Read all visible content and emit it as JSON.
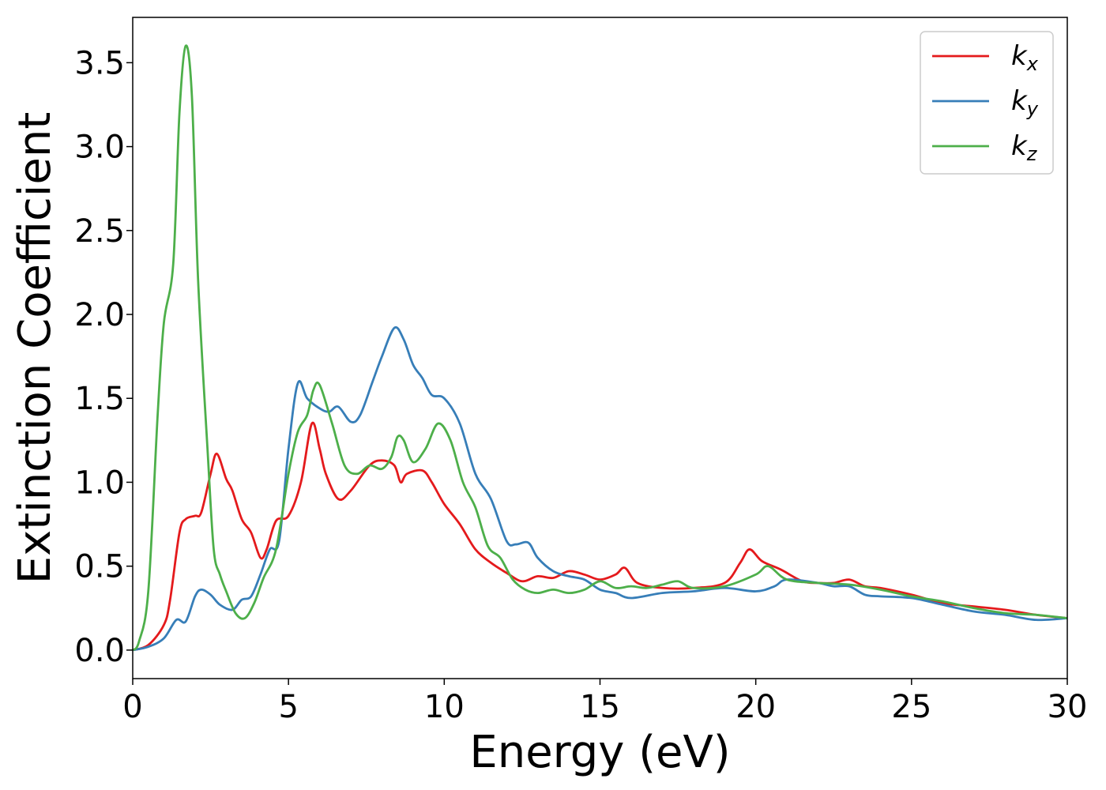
{
  "chart_data": {
    "type": "line",
    "title": "",
    "xlabel": "Energy (eV)",
    "ylabel": "Extinction Coefficient",
    "xlim": [
      0,
      30
    ],
    "ylim": [
      -0.17,
      3.77
    ],
    "xticks": [
      0,
      5,
      10,
      15,
      20,
      25,
      30
    ],
    "yticks": [
      "0.0",
      "0.5",
      "1.0",
      "1.5",
      "2.0",
      "2.5",
      "3.0",
      "3.5"
    ],
    "grid": false,
    "legend_position": "top-right",
    "series": [
      {
        "name": "k",
        "subscript": "x",
        "color": "#e41a1c",
        "x": [
          0,
          0.5,
          1.0,
          1.2,
          1.5,
          1.7,
          2.0,
          2.2,
          2.5,
          2.7,
          3.0,
          3.2,
          3.5,
          3.8,
          4.1,
          4.3,
          4.6,
          5.0,
          5.4,
          5.75,
          6.0,
          6.2,
          6.6,
          7.0,
          7.6,
          8.0,
          8.4,
          8.6,
          8.8,
          9.3,
          9.6,
          10.0,
          10.5,
          11.0,
          11.5,
          12.0,
          12.5,
          13.0,
          13.5,
          14.0,
          14.5,
          15.0,
          15.5,
          15.8,
          16.2,
          17.0,
          18.0,
          19.0,
          19.5,
          19.8,
          20.2,
          20.8,
          21.5,
          22.0,
          22.5,
          23.0,
          23.5,
          24.0,
          25.0,
          26.0,
          27.0,
          28.0,
          29.0,
          30.0
        ],
        "values": [
          0.0,
          0.03,
          0.15,
          0.3,
          0.7,
          0.78,
          0.8,
          0.82,
          1.05,
          1.17,
          1.02,
          0.95,
          0.78,
          0.7,
          0.55,
          0.6,
          0.77,
          0.8,
          1.0,
          1.35,
          1.2,
          1.05,
          0.9,
          0.95,
          1.1,
          1.13,
          1.1,
          1.0,
          1.05,
          1.07,
          1.0,
          0.87,
          0.75,
          0.6,
          0.52,
          0.46,
          0.41,
          0.44,
          0.43,
          0.47,
          0.45,
          0.42,
          0.45,
          0.49,
          0.4,
          0.37,
          0.37,
          0.4,
          0.52,
          0.6,
          0.53,
          0.48,
          0.41,
          0.4,
          0.4,
          0.42,
          0.38,
          0.37,
          0.33,
          0.28,
          0.26,
          0.24,
          0.21,
          0.19
        ]
      },
      {
        "name": "k",
        "subscript": "y",
        "color": "#377eb8",
        "x": [
          0,
          0.5,
          1.0,
          1.4,
          1.7,
          2.0,
          2.2,
          2.5,
          2.8,
          3.2,
          3.5,
          3.8,
          4.1,
          4.4,
          4.7,
          5.0,
          5.3,
          5.6,
          6.0,
          6.3,
          6.6,
          7.0,
          7.3,
          7.7,
          8.0,
          8.4,
          8.7,
          9.0,
          9.3,
          9.6,
          10.0,
          10.5,
          11.0,
          11.5,
          12.0,
          12.3,
          12.7,
          13.0,
          13.5,
          14.0,
          14.5,
          15.0,
          15.5,
          16.0,
          17.0,
          18.0,
          19.0,
          20.0,
          20.6,
          21.0,
          22.0,
          22.5,
          23.0,
          23.5,
          24.0,
          25.0,
          26.0,
          27.0,
          28.0,
          29.0,
          30.0
        ],
        "values": [
          0.0,
          0.02,
          0.07,
          0.18,
          0.17,
          0.32,
          0.36,
          0.33,
          0.27,
          0.24,
          0.3,
          0.32,
          0.45,
          0.6,
          0.65,
          1.2,
          1.59,
          1.5,
          1.44,
          1.42,
          1.45,
          1.36,
          1.4,
          1.6,
          1.75,
          1.92,
          1.85,
          1.7,
          1.62,
          1.52,
          1.5,
          1.35,
          1.05,
          0.9,
          0.65,
          0.63,
          0.64,
          0.55,
          0.47,
          0.44,
          0.42,
          0.36,
          0.34,
          0.31,
          0.34,
          0.35,
          0.37,
          0.35,
          0.38,
          0.42,
          0.4,
          0.38,
          0.38,
          0.33,
          0.32,
          0.31,
          0.27,
          0.23,
          0.21,
          0.18,
          0.19
        ]
      },
      {
        "name": "k",
        "subscript": "z",
        "color": "#4daf4a",
        "x": [
          0,
          0.2,
          0.5,
          0.8,
          1.0,
          1.3,
          1.5,
          1.7,
          1.9,
          2.1,
          2.4,
          2.6,
          2.8,
          3.0,
          3.3,
          3.6,
          3.9,
          4.2,
          4.6,
          5.0,
          5.3,
          5.6,
          5.8,
          6.0,
          6.4,
          6.8,
          7.2,
          7.6,
          8.0,
          8.3,
          8.5,
          8.7,
          9.0,
          9.4,
          9.8,
          10.2,
          10.6,
          11.0,
          11.4,
          11.8,
          12.2,
          12.6,
          13.0,
          13.5,
          14.0,
          14.5,
          15.0,
          15.5,
          16.0,
          16.5,
          17.0,
          17.5,
          18.0,
          19.0,
          20.0,
          20.4,
          21.0,
          22.0,
          23.0,
          24.0,
          25.0,
          26.0,
          27.0,
          28.0,
          29.0,
          30.0
        ],
        "values": [
          0.0,
          0.05,
          0.35,
          1.4,
          1.95,
          2.3,
          3.2,
          3.6,
          3.3,
          2.2,
          1.2,
          0.6,
          0.45,
          0.35,
          0.22,
          0.19,
          0.28,
          0.43,
          0.6,
          1.05,
          1.3,
          1.4,
          1.55,
          1.58,
          1.35,
          1.1,
          1.05,
          1.1,
          1.08,
          1.15,
          1.27,
          1.25,
          1.12,
          1.2,
          1.35,
          1.25,
          1.0,
          0.85,
          0.62,
          0.55,
          0.42,
          0.36,
          0.34,
          0.36,
          0.34,
          0.36,
          0.41,
          0.37,
          0.38,
          0.37,
          0.39,
          0.41,
          0.37,
          0.38,
          0.45,
          0.5,
          0.42,
          0.4,
          0.39,
          0.36,
          0.32,
          0.29,
          0.25,
          0.22,
          0.21,
          0.19
        ]
      }
    ]
  }
}
